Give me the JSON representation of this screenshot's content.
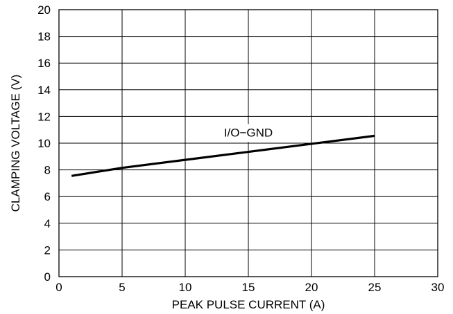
{
  "chart_data": {
    "type": "line",
    "title": "",
    "xlabel": "PEAK PULSE CURRENT (A)",
    "ylabel": "CLAMPING VOLTAGE (V)",
    "xlim": [
      0,
      30
    ],
    "ylim": [
      0,
      20
    ],
    "xticks": [
      "0",
      "5",
      "10",
      "15",
      "20",
      "25",
      "30"
    ],
    "yticks": [
      "0",
      "2",
      "4",
      "6",
      "8",
      "10",
      "12",
      "14",
      "16",
      "18",
      "20"
    ],
    "grid": true,
    "series": [
      {
        "name": "I/O−GND",
        "x": [
          1,
          5,
          10,
          15,
          20,
          25
        ],
        "y": [
          7.55,
          8.15,
          8.75,
          9.35,
          9.95,
          10.55
        ],
        "color": "#000000"
      }
    ]
  }
}
